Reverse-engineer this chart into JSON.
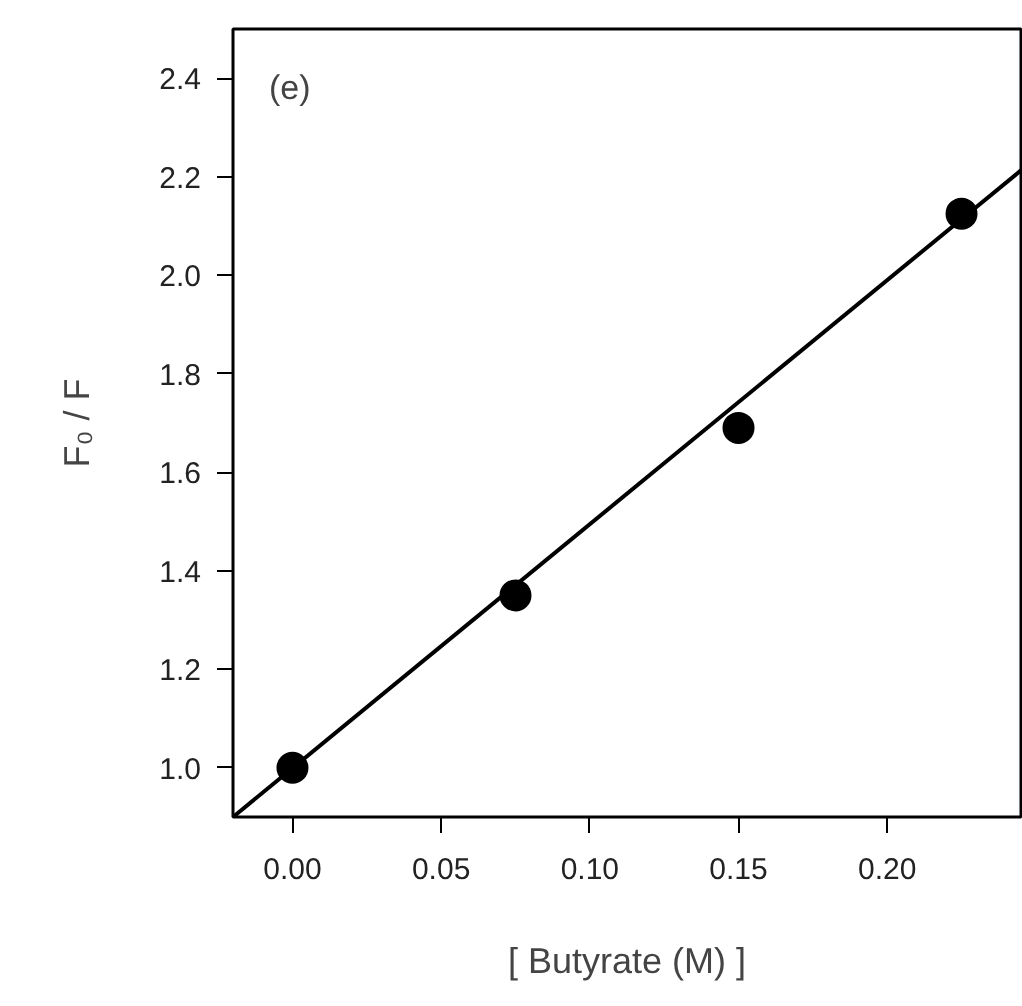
{
  "chart_data": {
    "type": "scatter",
    "xlabel": "[ Butyrate (M) ]",
    "ylabel": "F₀ / F",
    "annotations": [
      "(e)"
    ],
    "x": [
      0.0,
      0.075,
      0.15,
      0.225
    ],
    "series": [
      {
        "color": "#000000",
        "values": [
          1.0,
          1.35,
          1.69,
          2.125
        ],
        "marker": "circle"
      },
      {
        "type": "line",
        "color": "#000000",
        "x": [
          -0.02,
          0.245
        ],
        "values": [
          0.9,
          2.213
        ],
        "marker": "none"
      }
    ],
    "line_style": "solid",
    "grid": false,
    "xlim": [
      -0.02,
      0.245
    ],
    "ylim": [
      0.9,
      2.5
    ],
    "xticks": [
      {
        "value": 0,
        "label": "0.00"
      },
      0.05,
      {
        "value": 0.1,
        "label": "0.10"
      },
      0.15,
      {
        "value": 0.2,
        "label": "0.20"
      }
    ],
    "yticks": [
      {
        "value": 1,
        "label": "1.0"
      },
      1.2,
      1.4,
      1.6,
      1.8,
      {
        "value": 2,
        "label": "2.0"
      },
      2.2,
      2.4
    ]
  }
}
